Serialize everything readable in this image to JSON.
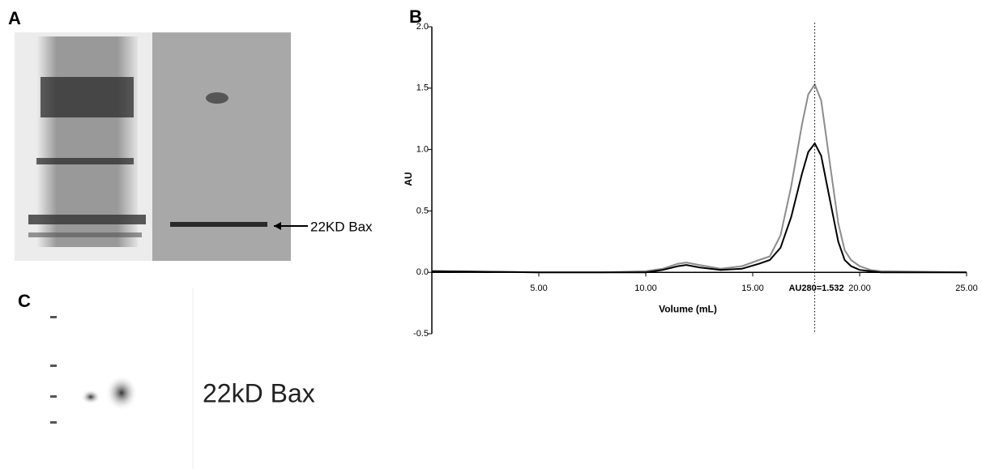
{
  "panels": {
    "a": {
      "label": "A",
      "annotation": "22KD Bax"
    },
    "b": {
      "label": "B"
    },
    "c": {
      "label": "C",
      "annotation": "22kD Bax"
    }
  },
  "chart_data": {
    "type": "line",
    "x_label": "Volume  (mL)",
    "y_label": "AU",
    "x": [
      0,
      5,
      8,
      10,
      10.8,
      11.5,
      11.9,
      12.5,
      13.5,
      14.5,
      15.3,
      15.8,
      16.3,
      16.8,
      17.3,
      17.6,
      17.9,
      18.2,
      18.6,
      19.0,
      19.3,
      19.6,
      20.0,
      20.5,
      21,
      25
    ],
    "series": [
      {
        "color": "#8c8c8c",
        "values": [
          0.01,
          0.0,
          0.0,
          0.01,
          0.03,
          0.07,
          0.08,
          0.06,
          0.03,
          0.05,
          0.1,
          0.13,
          0.3,
          0.7,
          1.2,
          1.45,
          1.53,
          1.4,
          0.9,
          0.4,
          0.18,
          0.1,
          0.05,
          0.02,
          0.01,
          0.0
        ]
      },
      {
        "color": "#000000",
        "values": [
          0.01,
          0.0,
          0.0,
          0.0,
          0.02,
          0.05,
          0.06,
          0.04,
          0.02,
          0.03,
          0.07,
          0.1,
          0.2,
          0.45,
          0.8,
          0.98,
          1.05,
          0.95,
          0.6,
          0.25,
          0.1,
          0.05,
          0.02,
          0.01,
          0.0,
          0.0
        ]
      }
    ],
    "xlim": [
      0,
      25
    ],
    "ylim": [
      -0.5,
      2.0
    ],
    "xticks": [
      {
        "value": 5,
        "label": "5.00"
      },
      {
        "value": 10,
        "label": "10.00"
      },
      {
        "value": 15,
        "label": "15.00"
      },
      {
        "value": 20,
        "label": "20.00"
      },
      {
        "value": 25,
        "label": "25.00"
      }
    ],
    "yticks": [
      -0.5,
      {
        "value": 0,
        "label": "0.0"
      },
      0.5,
      {
        "value": 1,
        "label": "1.0"
      },
      1.5,
      {
        "value": 2,
        "label": "2.0"
      }
    ],
    "marker_x": 17.9,
    "marker_label": "AU280=1.532"
  }
}
